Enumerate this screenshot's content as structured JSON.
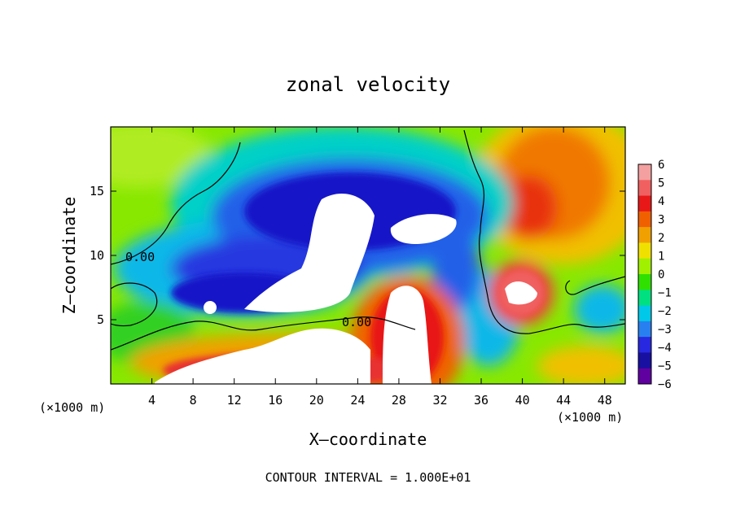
{
  "chart_data": {
    "type": "heatmap",
    "title": "zonal velocity",
    "xlabel": "X–coordinate",
    "ylabel": "Z–coordinate",
    "x_unit": "(×1000 m)",
    "z_unit": "(×1000 m)",
    "footer": "CONTOUR INTERVAL = 1.000E+01",
    "xlim": [
      0,
      50
    ],
    "ylim": [
      0,
      20
    ],
    "x_ticks": [
      4,
      8,
      12,
      16,
      20,
      24,
      28,
      32,
      36,
      40,
      44,
      48
    ],
    "y_ticks": [
      5,
      10,
      15
    ],
    "colorbar": {
      "range": [
        -6,
        6
      ],
      "labels": [
        "6",
        "5",
        "4",
        "3",
        "2",
        "1",
        "0",
        "−1",
        "−2",
        "−3",
        "−4",
        "−5",
        "−6"
      ],
      "colors": [
        "#f4a0a0",
        "#f06060",
        "#e81818",
        "#f06000",
        "#f0a000",
        "#f0e000",
        "#a0f000",
        "#30e000",
        "#00e080",
        "#00c8e8",
        "#2880f0",
        "#2828e0",
        "#1810a0",
        "#6000a0"
      ]
    },
    "contour_labels": [
      "0.00",
      "0.00"
    ],
    "regions": [
      {
        "value": 1.5,
        "label": "upper-left background"
      },
      {
        "value": -1.5,
        "label": "upper middle cyan band"
      },
      {
        "value": -4.5,
        "label": "central jet core"
      },
      {
        "value": -8,
        "label": "saturated core (white)"
      },
      {
        "value": 4,
        "label": "upper-right positive core"
      },
      {
        "value": 8,
        "label": "lower positive maximum (white)"
      },
      {
        "value": 2.5,
        "label": "lower-left positive band"
      },
      {
        "value": 5,
        "label": "right positive lobe near x=40"
      }
    ]
  }
}
